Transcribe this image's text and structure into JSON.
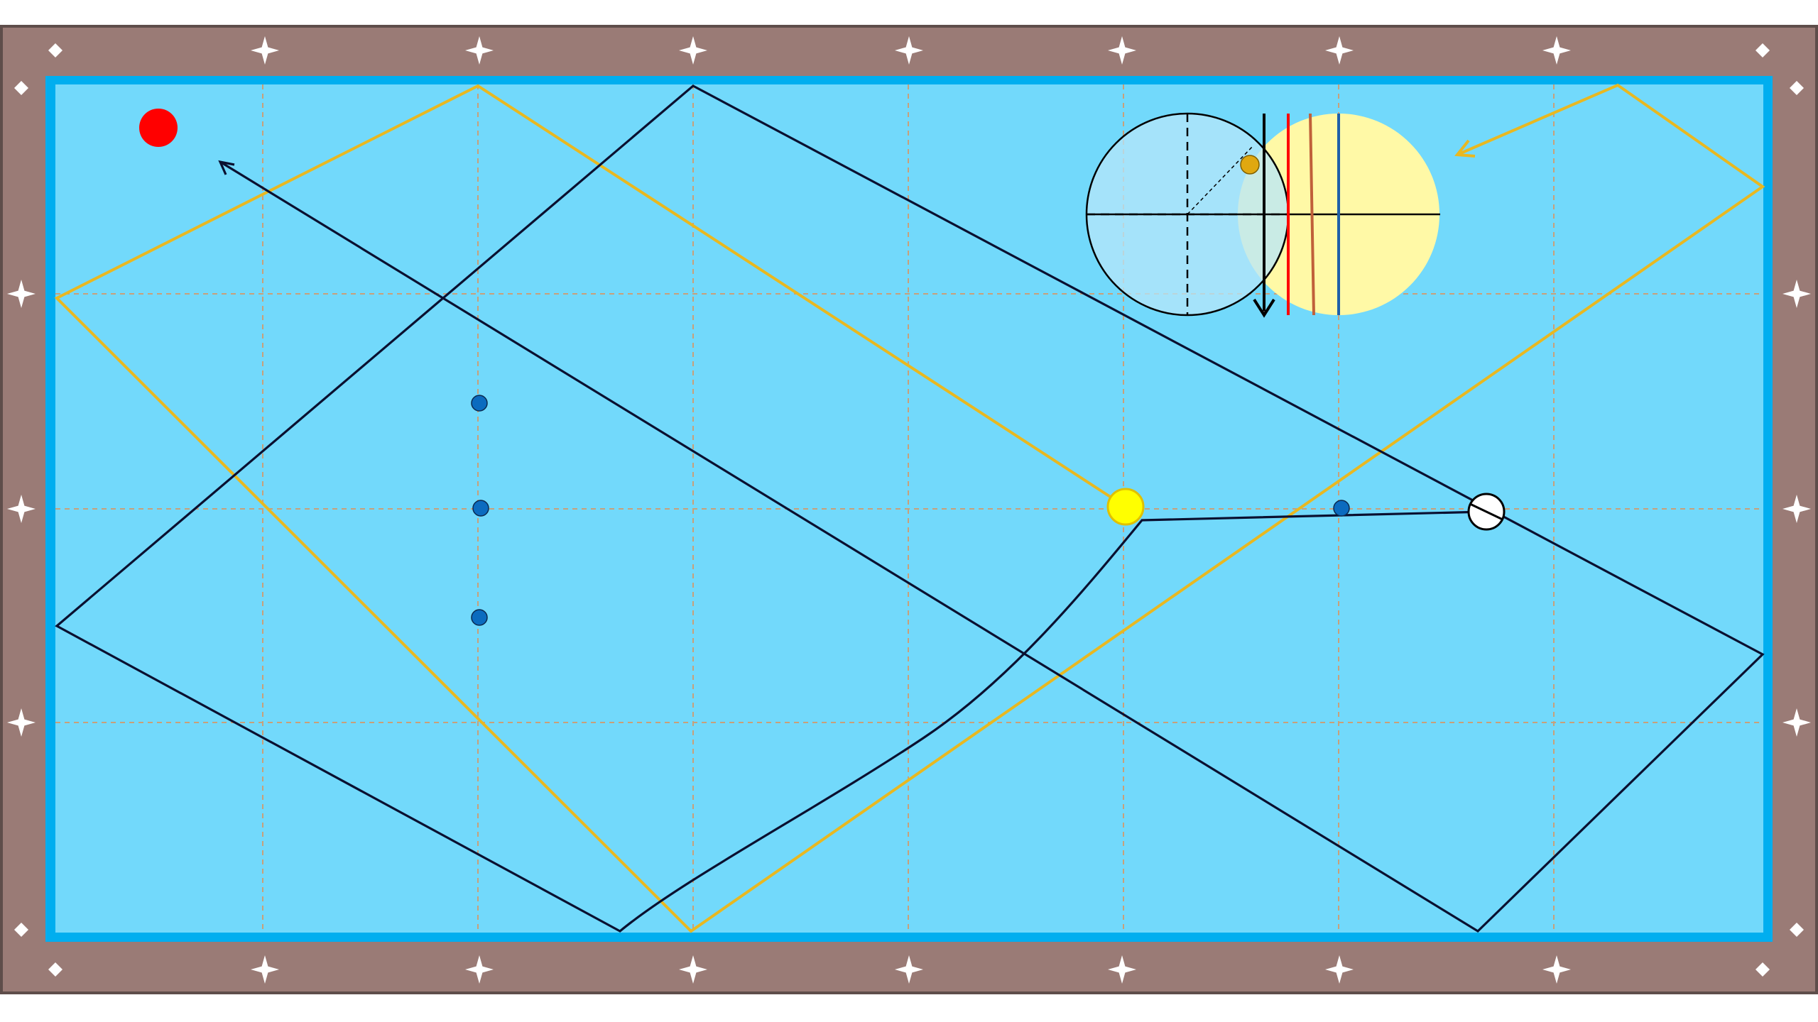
{
  "diagram": {
    "title": "",
    "colors": {
      "background": "#ffffff",
      "rail": "#9a7b76",
      "rail_border": "#5e4d4a",
      "cushion": "#00aeef",
      "cloth": "#72d9fb",
      "grid": "#c8a07a",
      "diamond_marker": "#ffffff",
      "cue_path": "#000000",
      "object_path": "#e9b820",
      "red_ball": "#ff0000",
      "yellow_ball": "#ffff00",
      "white_ball": "#ffffff",
      "position_dot": "#0b6bbf",
      "aim_circle_fill": "#b7e6fa",
      "contact_circle_fill": "#fff9a6",
      "aim_line_red": "#ff0000",
      "aim_line_brown": "#c0603a",
      "aim_line_blue": "#1f5fa8",
      "english_dot": "#e0a810"
    },
    "balls": [
      {
        "name": "red-ball",
        "color": "red"
      },
      {
        "name": "yellow-ball",
        "color": "yellow"
      },
      {
        "name": "cue-ball",
        "color": "white"
      }
    ],
    "legend_text": []
  }
}
